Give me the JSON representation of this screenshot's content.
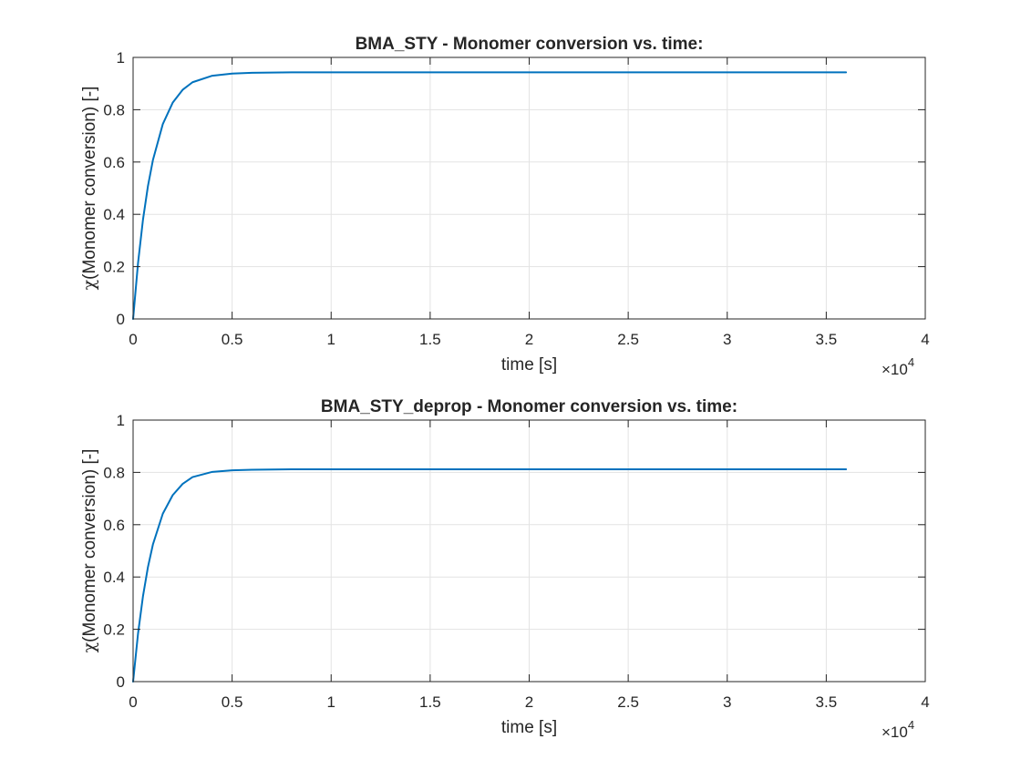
{
  "chart_data": [
    {
      "type": "line",
      "title": "BMA_STY - Monomer conversion vs. time:",
      "xlabel": "time [s]",
      "ylabel_symbol": "χ",
      "ylabel": "(Monomer conversion) [-]",
      "x_exponent_base": "×10",
      "x_exponent_power": "4",
      "x_tick_labels": [
        "0",
        "0.5",
        "1",
        "1.5",
        "2",
        "2.5",
        "3",
        "3.5",
        "4"
      ],
      "y_tick_labels": [
        "0",
        "0.2",
        "0.4",
        "0.6",
        "0.8",
        "1"
      ],
      "xlim": [
        0,
        40000
      ],
      "ylim": [
        0,
        1
      ],
      "grid": true,
      "color": "#0072BD",
      "series": [
        {
          "x": [
            0,
            250,
            500,
            750,
            1000,
            1500,
            2000,
            2500,
            3000,
            4000,
            5000,
            6000,
            8000,
            10000,
            15000,
            20000,
            25000,
            30000,
            36000
          ],
          "y": [
            0,
            0.214,
            0.38,
            0.508,
            0.607,
            0.745,
            0.827,
            0.876,
            0.905,
            0.93,
            0.938,
            0.941,
            0.943,
            0.943,
            0.943,
            0.943,
            0.943,
            0.943,
            0.943
          ]
        }
      ]
    },
    {
      "type": "line",
      "title": "BMA_STY_deprop - Monomer conversion vs. time:",
      "xlabel": "time [s]",
      "ylabel_symbol": "χ",
      "ylabel": "(Monomer conversion) [-]",
      "x_exponent_base": "×10",
      "x_exponent_power": "4",
      "x_tick_labels": [
        "0",
        "0.5",
        "1",
        "1.5",
        "2",
        "2.5",
        "3",
        "3.5",
        "4"
      ],
      "y_tick_labels": [
        "0",
        "0.2",
        "0.4",
        "0.6",
        "0.8",
        "1"
      ],
      "xlim": [
        0,
        40000
      ],
      "ylim": [
        0,
        1
      ],
      "grid": true,
      "color": "#0072BD",
      "series": [
        {
          "x": [
            0,
            250,
            500,
            750,
            1000,
            1500,
            2000,
            2500,
            3000,
            4000,
            5000,
            6000,
            8000,
            10000,
            15000,
            20000,
            25000,
            30000,
            36000
          ],
          "y": [
            0,
            0.184,
            0.327,
            0.438,
            0.524,
            0.642,
            0.713,
            0.756,
            0.782,
            0.802,
            0.808,
            0.81,
            0.812,
            0.812,
            0.812,
            0.812,
            0.812,
            0.812,
            0.812
          ]
        }
      ]
    }
  ]
}
